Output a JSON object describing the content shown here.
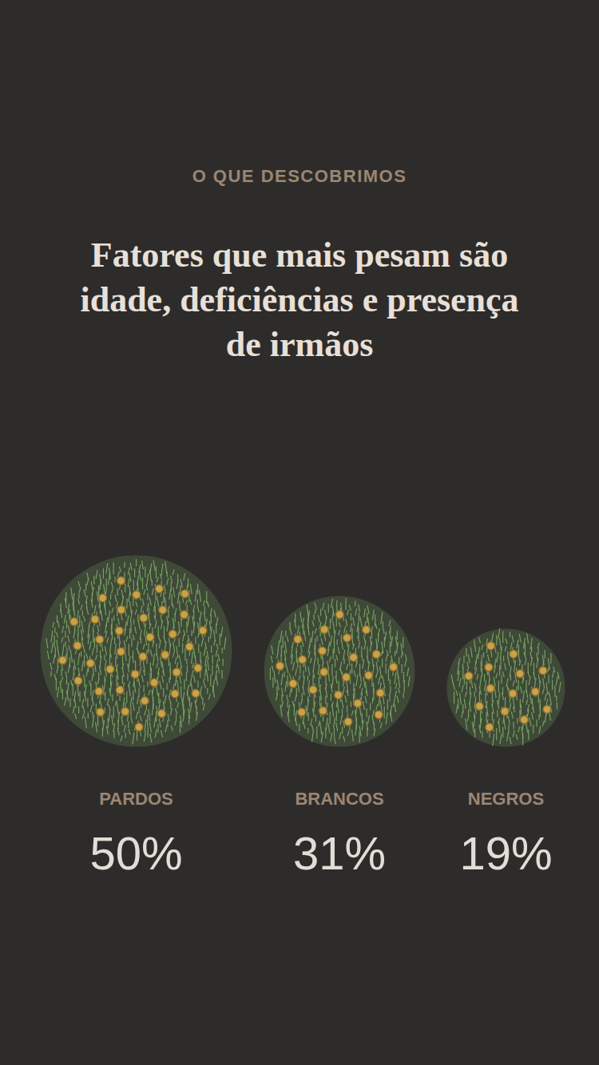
{
  "chart_data": {
    "type": "bubble",
    "subtitle": "O QUE DESCOBRIMOS",
    "title": "Fatores que mais pesam são idade, deficiências e presença de irmãos",
    "categories": [
      "PARDOS",
      "BRANCOS",
      "NEGROS"
    ],
    "values": [
      50,
      31,
      19
    ],
    "value_labels": [
      "50%",
      "31%",
      "19%"
    ],
    "data_labels": true,
    "color": "#7fb069",
    "tick_labels": false
  }
}
